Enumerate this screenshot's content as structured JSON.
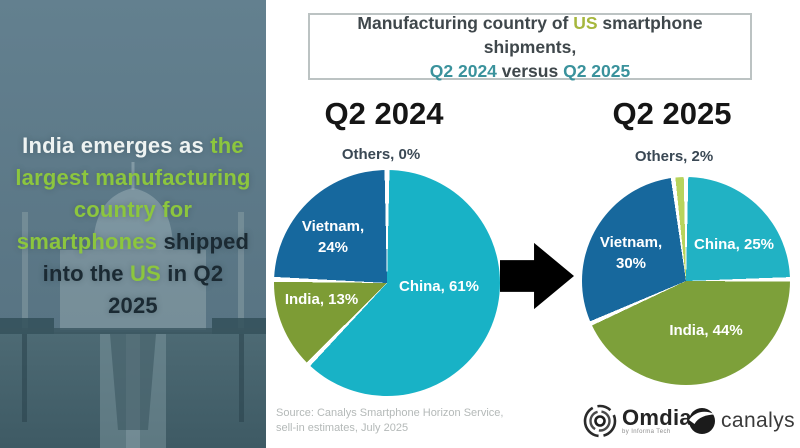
{
  "colors": {
    "white": "#eef3f2",
    "green": "#8cc63e",
    "dark_navy": "#1b2a33",
    "title_dark": "#3f474b",
    "olive": "#a6b73d",
    "teal": "#3a929c"
  },
  "left_panel": {
    "lines": [
      {
        "parts": [
          {
            "t": "India emerges as ",
            "c": "white"
          },
          {
            "t": "the",
            "c": "green"
          }
        ]
      },
      {
        "parts": [
          {
            "t": "largest manufacturing",
            "c": "green"
          }
        ]
      },
      {
        "parts": [
          {
            "t": "country for",
            "c": "green"
          }
        ]
      },
      {
        "parts": [
          {
            "t": "smartphones",
            "c": "green"
          },
          {
            "t": " shipped",
            "c": "dark_navy"
          }
        ]
      },
      {
        "parts": [
          {
            "t": "into the ",
            "c": "dark_navy"
          },
          {
            "t": "US",
            "c": "green"
          },
          {
            "t": " in Q2",
            "c": "dark_navy"
          }
        ]
      },
      {
        "parts": [
          {
            "t": "2025",
            "c": "dark_navy"
          }
        ]
      }
    ]
  },
  "title_box": {
    "lines": [
      {
        "parts": [
          {
            "t": "Manufacturing country of ",
            "c": "title_dark"
          },
          {
            "t": "US",
            "c": "olive"
          },
          {
            "t": " smartphone shipments,",
            "c": "title_dark"
          }
        ]
      },
      {
        "parts": [
          {
            "t": "Q2 2024",
            "c": "teal"
          },
          {
            "t": " versus ",
            "c": "title_dark"
          },
          {
            "t": "Q2 2025",
            "c": "teal"
          }
        ]
      }
    ]
  },
  "chart_data": [
    {
      "type": "pie",
      "title": "Q2 2024",
      "others_callout": "Others, 0%",
      "start_angle": "12-oclock",
      "direction": "clockwise",
      "labels_inside": true,
      "slices": [
        {
          "name": "China",
          "value": 61,
          "label": "China, 61%",
          "color": "#18b2c6"
        },
        {
          "name": "India",
          "value": 13,
          "label": "India, 13%",
          "color": "#7d9c35"
        },
        {
          "name": "Vietnam",
          "value": 24,
          "label": "Vietnam, 24%",
          "color": "#16689e"
        },
        {
          "name": "Others",
          "value": 0,
          "label": "Others, 0%",
          "color": "#b8d45c"
        }
      ]
    },
    {
      "type": "pie",
      "title": "Q2 2025",
      "others_callout": "Others, 2%",
      "start_angle": "12-oclock",
      "direction": "clockwise",
      "labels_inside": true,
      "slices": [
        {
          "name": "China",
          "value": 25,
          "label": "China, 25%",
          "color": "#21b2c4"
        },
        {
          "name": "India",
          "value": 44,
          "label": "India, 44%",
          "color": "#7da03a"
        },
        {
          "name": "Vietnam",
          "value": 30,
          "label": "Vietnam, 30%",
          "color": "#17689d"
        },
        {
          "name": "Others",
          "value": 2,
          "label": "Others, 2%",
          "color": "#b8d45c"
        }
      ]
    }
  ],
  "footer": {
    "source_line1": "Source: Canalys Smartphone Horizon Service,",
    "source_line2": "sell-in estimates, July 2025",
    "omdia_name": "Omdia",
    "omdia_tagline": "by Informa Tech",
    "canalys_name": "canalys"
  }
}
